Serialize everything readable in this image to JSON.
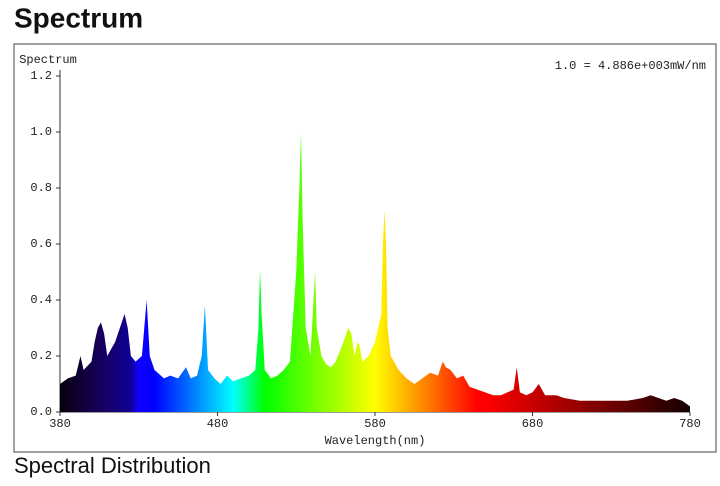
{
  "chart_data": {
    "type": "area",
    "title": "Spectrum",
    "ylabel": "Spectrum",
    "xlabel": "Wavelength(nm)",
    "annotation": "1.0 = 4.886e+003mW/nm",
    "caption": "Spectral Distribution",
    "x": [
      380,
      385,
      390,
      393,
      395,
      400,
      402,
      404,
      406,
      408,
      410,
      412,
      415,
      418,
      421,
      423,
      425,
      428,
      432,
      435,
      437,
      440,
      442,
      446,
      450,
      455,
      460,
      463,
      467,
      470,
      472,
      474,
      478,
      482,
      486,
      490,
      495,
      500,
      504,
      506,
      507,
      508,
      510,
      514,
      518,
      522,
      526,
      530,
      532,
      533,
      534,
      536,
      539,
      541,
      542,
      543,
      546,
      549,
      552,
      555,
      560,
      563,
      565,
      567,
      569,
      570,
      572,
      576,
      580,
      584,
      585,
      586,
      587,
      588,
      590,
      595,
      600,
      605,
      610,
      615,
      620,
      623,
      625,
      628,
      632,
      636,
      640,
      645,
      650,
      655,
      660,
      664,
      668,
      670,
      672,
      676,
      680,
      684,
      688,
      695,
      700,
      710,
      720,
      730,
      740,
      750,
      755,
      760,
      765,
      770,
      775,
      780
    ],
    "y": [
      0.1,
      0.12,
      0.13,
      0.2,
      0.15,
      0.18,
      0.25,
      0.3,
      0.32,
      0.28,
      0.2,
      0.22,
      0.25,
      0.3,
      0.35,
      0.3,
      0.2,
      0.18,
      0.2,
      0.4,
      0.2,
      0.15,
      0.14,
      0.12,
      0.13,
      0.12,
      0.16,
      0.12,
      0.13,
      0.2,
      0.38,
      0.15,
      0.12,
      0.1,
      0.13,
      0.11,
      0.12,
      0.13,
      0.15,
      0.3,
      0.51,
      0.35,
      0.15,
      0.12,
      0.13,
      0.15,
      0.18,
      0.5,
      0.8,
      1.0,
      0.7,
      0.3,
      0.2,
      0.4,
      0.5,
      0.3,
      0.2,
      0.17,
      0.16,
      0.18,
      0.25,
      0.3,
      0.28,
      0.2,
      0.25,
      0.24,
      0.18,
      0.2,
      0.25,
      0.35,
      0.6,
      0.72,
      0.6,
      0.3,
      0.2,
      0.15,
      0.12,
      0.1,
      0.12,
      0.14,
      0.13,
      0.18,
      0.16,
      0.15,
      0.12,
      0.13,
      0.09,
      0.08,
      0.07,
      0.06,
      0.06,
      0.07,
      0.08,
      0.16,
      0.07,
      0.06,
      0.07,
      0.1,
      0.06,
      0.06,
      0.05,
      0.04,
      0.04,
      0.04,
      0.04,
      0.05,
      0.06,
      0.05,
      0.04,
      0.05,
      0.04,
      0.02
    ],
    "xlim": [
      380,
      780
    ],
    "xticks": [
      380,
      480,
      580,
      680,
      780
    ],
    "ylim": [
      0,
      1.2
    ],
    "yticks": [
      {
        "value": 0,
        "label": "0.0"
      },
      0.2,
      0.4,
      0.6,
      0.8,
      {
        "value": 1,
        "label": "1.0"
      },
      1.2
    ],
    "fill": "spectral"
  }
}
